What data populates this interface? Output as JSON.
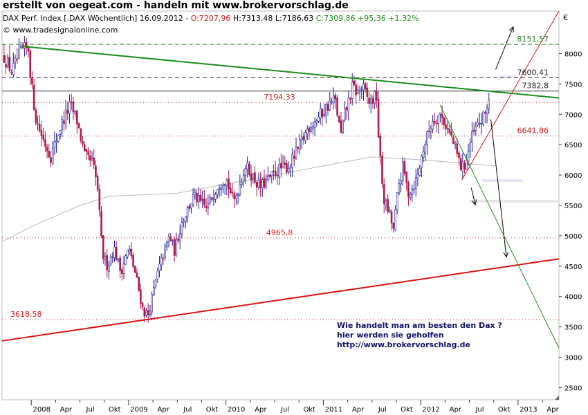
{
  "page_title": "erstellt von oegeat.com - handeln mit www.brokervorschlag.de",
  "info": {
    "instrument": "DAX Perf. Index [.DAX Wöchentlich] 16.09.2012 -",
    "open": "O:7207,96",
    "high_low": "H:7313,48 L:7186,63",
    "close": "C:7309,86 +95,36 +1,32%"
  },
  "credit": "© www.tradesignalonline.com",
  "note": [
    "Wie handelt man am besten  den Dax ?",
    "hier werden sie geholfen",
    "http://www.brokervorschlag.de"
  ],
  "colors": {
    "up": "#1a1a99",
    "down": "#b0174a",
    "level": "#d11f1f",
    "trend_green": "#1a8c1a",
    "trend_red": "#dd1111",
    "ma": "#b9b9b9",
    "close_color": "#1d8a1d",
    "open_color": "#c81f1f"
  },
  "chart_data": {
    "type": "candlestick",
    "title": "DAX Perf. Index [.DAX Wöchentlich]",
    "currency": "€",
    "ylim": [
      2300,
      8700
    ],
    "y_ticks": [
      2500,
      3000,
      3500,
      4000,
      4500,
      5000,
      5500,
      6000,
      6500,
      7000,
      7500,
      8000
    ],
    "x_ticks": [
      "2008",
      "Apr",
      "Jul",
      "Okt",
      "2009",
      "Apr",
      "Jul",
      "Okt",
      "2010",
      "Apr",
      "Jul",
      "Okt",
      "2011",
      "Apr",
      "Jul",
      "Okt",
      "2012",
      "Apr",
      "Jul",
      "Okt",
      "2013",
      "Apr"
    ],
    "x_range": [
      2007.7,
      2013.42
    ],
    "key_points": [
      {
        "t": 2007.72,
        "v": 7950
      },
      {
        "t": 2007.8,
        "v": 7700
      },
      {
        "t": 2007.9,
        "v": 8050
      },
      {
        "t": 2007.97,
        "v": 8080
      },
      {
        "t": 2008.0,
        "v": 7500
      },
      {
        "t": 2008.05,
        "v": 6900
      },
      {
        "t": 2008.12,
        "v": 6600
      },
      {
        "t": 2008.2,
        "v": 6300
      },
      {
        "t": 2008.3,
        "v": 6800
      },
      {
        "t": 2008.4,
        "v": 7150
      },
      {
        "t": 2008.47,
        "v": 6900
      },
      {
        "t": 2008.55,
        "v": 6300
      },
      {
        "t": 2008.63,
        "v": 6200
      },
      {
        "t": 2008.68,
        "v": 5800
      },
      {
        "t": 2008.73,
        "v": 4700
      },
      {
        "t": 2008.78,
        "v": 4500
      },
      {
        "t": 2008.85,
        "v": 4800
      },
      {
        "t": 2008.92,
        "v": 4400
      },
      {
        "t": 2009.0,
        "v": 4800
      },
      {
        "t": 2009.08,
        "v": 4300
      },
      {
        "t": 2009.15,
        "v": 3750
      },
      {
        "t": 2009.2,
        "v": 3700
      },
      {
        "t": 2009.3,
        "v": 4400
      },
      {
        "t": 2009.42,
        "v": 5000
      },
      {
        "t": 2009.47,
        "v": 4750
      },
      {
        "t": 2009.55,
        "v": 5250
      },
      {
        "t": 2009.67,
        "v": 5650
      },
      {
        "t": 2009.8,
        "v": 5450
      },
      {
        "t": 2009.92,
        "v": 5850
      },
      {
        "t": 2010.0,
        "v": 5950
      },
      {
        "t": 2010.08,
        "v": 5550
      },
      {
        "t": 2010.2,
        "v": 6150
      },
      {
        "t": 2010.35,
        "v": 5800
      },
      {
        "t": 2010.45,
        "v": 5950
      },
      {
        "t": 2010.55,
        "v": 6100
      },
      {
        "t": 2010.65,
        "v": 6150
      },
      {
        "t": 2010.75,
        "v": 6450
      },
      {
        "t": 2010.85,
        "v": 6800
      },
      {
        "t": 2010.95,
        "v": 6950
      },
      {
        "t": 2011.05,
        "v": 7150
      },
      {
        "t": 2011.12,
        "v": 7250
      },
      {
        "t": 2011.18,
        "v": 6650
      },
      {
        "t": 2011.22,
        "v": 7000
      },
      {
        "t": 2011.3,
        "v": 7450
      },
      {
        "t": 2011.35,
        "v": 7350
      },
      {
        "t": 2011.4,
        "v": 7450
      },
      {
        "t": 2011.47,
        "v": 7200
      },
      {
        "t": 2011.55,
        "v": 7300
      },
      {
        "t": 2011.57,
        "v": 6500
      },
      {
        "t": 2011.62,
        "v": 5600
      },
      {
        "t": 2011.68,
        "v": 5350
      },
      {
        "t": 2011.72,
        "v": 5100
      },
      {
        "t": 2011.77,
        "v": 5800
      },
      {
        "t": 2011.82,
        "v": 6150
      },
      {
        "t": 2011.87,
        "v": 5700
      },
      {
        "t": 2011.92,
        "v": 5800
      },
      {
        "t": 2011.97,
        "v": 6000
      },
      {
        "t": 2012.03,
        "v": 6450
      },
      {
        "t": 2012.12,
        "v": 6900
      },
      {
        "t": 2012.2,
        "v": 7000
      },
      {
        "t": 2012.25,
        "v": 6850
      },
      {
        "t": 2012.32,
        "v": 6600
      },
      {
        "t": 2012.38,
        "v": 6300
      },
      {
        "t": 2012.42,
        "v": 6100
      },
      {
        "t": 2012.46,
        "v": 6200
      },
      {
        "t": 2012.52,
        "v": 6600
      },
      {
        "t": 2012.58,
        "v": 6800
      },
      {
        "t": 2012.65,
        "v": 6950
      },
      {
        "t": 2012.71,
        "v": 7310
      }
    ],
    "moving_average": [
      {
        "t": 2007.7,
        "v": 4900
      },
      {
        "t": 2008.0,
        "v": 5150
      },
      {
        "t": 2008.5,
        "v": 5500
      },
      {
        "t": 2008.8,
        "v": 5650
      },
      {
        "t": 2009.5,
        "v": 5700
      },
      {
        "t": 2010.0,
        "v": 5850
      },
      {
        "t": 2010.5,
        "v": 6000
      },
      {
        "t": 2011.0,
        "v": 6150
      },
      {
        "t": 2011.5,
        "v": 6300
      },
      {
        "t": 2012.0,
        "v": 6250
      },
      {
        "t": 2012.4,
        "v": 6200
      },
      {
        "t": 2012.77,
        "v": 6150
      }
    ],
    "levels": [
      {
        "value": 8151.57,
        "label": "8151,57",
        "style": "dashed",
        "color": "#2a8a2a",
        "label_side": "right"
      },
      {
        "value": 7600.41,
        "label": "7600,41",
        "style": "dashed",
        "color": "#333333",
        "label_side": "right"
      },
      {
        "value": 7382.8,
        "label": "7382,8",
        "style": "solid",
        "color": "#222222",
        "label_side": "right"
      },
      {
        "value": 7194.33,
        "label": "7194,33",
        "style": "dotted",
        "color": "#d11f1f",
        "label_side": "mid"
      },
      {
        "value": 6641.86,
        "label": "6641,86",
        "style": "dotted",
        "color": "#d11f1f",
        "label_side": "right"
      },
      {
        "value": 4965.8,
        "label": "4965,8",
        "style": "dotted",
        "color": "#d11f1f",
        "label_side": "mid"
      },
      {
        "value": 3618.58,
        "label": "3618,58",
        "style": "dotted",
        "color": "#d11f1f",
        "label_side": "left"
      }
    ],
    "trendlines": [
      {
        "name": "long-term resistance",
        "color": "#1a8c1a",
        "width": 2,
        "from": {
          "t": 2007.9,
          "v": 8120
        },
        "to": {
          "t": 2013.42,
          "v": 7270
        }
      },
      {
        "name": "long-term support",
        "color": "#dd1111",
        "width": 2,
        "from": {
          "t": 2007.7,
          "v": 3270
        },
        "to": {
          "t": 2013.42,
          "v": 4620
        }
      },
      {
        "name": "short-term uptrend",
        "color": "#dd1111",
        "width": 1,
        "from": {
          "t": 2012.42,
          "v": 5910
        },
        "to": {
          "t": 2013.42,
          "v": 8700
        }
      },
      {
        "name": "short-term downtrend",
        "color": "#1a8c1a",
        "width": 1,
        "from": {
          "t": 2012.2,
          "v": 7150
        },
        "to": {
          "t": 2013.42,
          "v": 3150
        }
      }
    ],
    "zones": [
      {
        "from_t": 2012.8,
        "to_t": 2012.98,
        "v": 7620,
        "color": "#e4e4f4"
      },
      {
        "from_t": 2012.63,
        "to_t": 2013.05,
        "v": 5910,
        "color": "#e4e4f4"
      },
      {
        "from_t": 2012.5,
        "to_t": 2013.42,
        "v": 5570,
        "color": "#e6e6e6"
      }
    ],
    "arrows": [
      {
        "from": {
          "t": 2012.77,
          "v": 7740
        },
        "to": {
          "t": 2012.95,
          "v": 8440
        }
      },
      {
        "from": {
          "t": 2012.72,
          "v": 6920
        },
        "to": {
          "t": 2012.88,
          "v": 4650
        }
      },
      {
        "from": {
          "t": 2012.52,
          "v": 5790
        },
        "to": {
          "t": 2012.56,
          "v": 5510
        }
      }
    ]
  }
}
